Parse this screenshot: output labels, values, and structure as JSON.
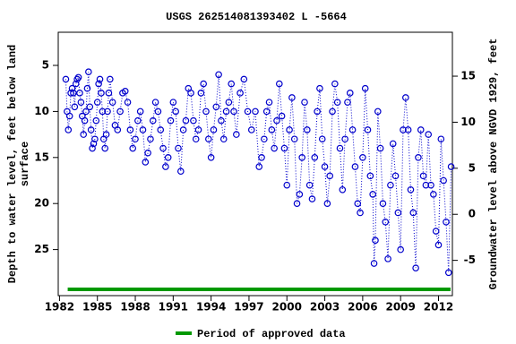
{
  "chart_data": {
    "type": "scatter",
    "title": "USGS 262514081393402 L  -5664",
    "ylabel": [
      "Depth to water level, feet below land",
      "surface"
    ],
    "y2label": "Groundwater level above NGVD 1929, feet",
    "xlim": [
      1981.9,
      2013.1
    ],
    "xticks": [
      1982,
      1985,
      1988,
      1991,
      1994,
      1997,
      2000,
      2003,
      2006,
      2009,
      2012
    ],
    "ylim": [
      30,
      1.4
    ],
    "yticks": [
      5,
      10,
      15,
      20,
      25
    ],
    "y2lim": [
      -8.83,
      19.77
    ],
    "y2ticks": [
      -5,
      0,
      5,
      10,
      15
    ],
    "series": [
      {
        "color": "#0000cc",
        "x": [
          1982.5,
          1982.6,
          1982.7,
          1982.8,
          1982.9,
          1983.0,
          1983.1,
          1983.2,
          1983.3,
          1983.4,
          1983.5,
          1983.6,
          1983.7,
          1983.8,
          1983.9,
          1984.0,
          1984.1,
          1984.2,
          1984.3,
          1984.4,
          1984.5,
          1984.6,
          1984.7,
          1984.8,
          1984.9,
          1985.0,
          1985.1,
          1985.2,
          1985.3,
          1985.4,
          1985.5,
          1985.6,
          1985.7,
          1985.8,
          1985.9,
          1986.0,
          1986.2,
          1986.4,
          1986.6,
          1986.8,
          1987.0,
          1987.2,
          1987.4,
          1987.6,
          1987.8,
          1988.0,
          1988.2,
          1988.4,
          1988.6,
          1988.8,
          1989.0,
          1989.2,
          1989.4,
          1989.6,
          1989.8,
          1990.0,
          1990.2,
          1990.4,
          1990.6,
          1990.8,
          1991.0,
          1991.2,
          1991.4,
          1991.6,
          1991.8,
          1992.0,
          1992.2,
          1992.4,
          1992.6,
          1992.8,
          1993.0,
          1993.2,
          1993.4,
          1993.6,
          1993.8,
          1994.0,
          1994.2,
          1994.4,
          1994.6,
          1994.8,
          1995.0,
          1995.2,
          1995.4,
          1995.6,
          1995.8,
          1996.0,
          1996.3,
          1996.6,
          1996.9,
          1997.2,
          1997.5,
          1997.8,
          1998.0,
          1998.2,
          1998.4,
          1998.6,
          1998.8,
          1999.0,
          1999.2,
          1999.4,
          1999.6,
          1999.8,
          2000.0,
          2000.2,
          2000.4,
          2000.6,
          2000.8,
          2001.0,
          2001.2,
          2001.4,
          2001.6,
          2001.8,
          2002.0,
          2002.2,
          2002.4,
          2002.6,
          2002.8,
          2003.0,
          2003.2,
          2003.4,
          2003.6,
          2003.8,
          2004.0,
          2004.2,
          2004.4,
          2004.6,
          2004.8,
          2005.0,
          2005.2,
          2005.4,
          2005.6,
          2005.8,
          2006.0,
          2006.2,
          2006.4,
          2006.6,
          2006.8,
          2006.9,
          2007.0,
          2007.2,
          2007.4,
          2007.6,
          2007.8,
          2008.0,
          2008.2,
          2008.4,
          2008.6,
          2008.8,
          2009.0,
          2009.2,
          2009.4,
          2009.6,
          2009.8,
          2010.0,
          2010.2,
          2010.4,
          2010.6,
          2010.8,
          2011.0,
          2011.2,
          2011.4,
          2011.6,
          2011.8,
          2012.0,
          2012.2,
          2012.4,
          2012.6,
          2012.8,
          2013.0
        ],
        "values": [
          6.5,
          10,
          12,
          10.5,
          8,
          7.5,
          8,
          9.5,
          7,
          6.5,
          6.3,
          8,
          9,
          10.5,
          12.5,
          11,
          10,
          7.5,
          5.7,
          9.5,
          12,
          14,
          13.5,
          13,
          11,
          9,
          7,
          6.5,
          8,
          10,
          13,
          14,
          12.5,
          10,
          8,
          6.5,
          9,
          11.5,
          12,
          10,
          8,
          7.8,
          9,
          12,
          14,
          13,
          11,
          10,
          12,
          15.5,
          14.5,
          13,
          11,
          9,
          10,
          12,
          14,
          16,
          15,
          11,
          9,
          10,
          14,
          16.5,
          12,
          11,
          7.5,
          8,
          11,
          13,
          12,
          8,
          7,
          10,
          13,
          15,
          12,
          9.5,
          6,
          11,
          13,
          10,
          9,
          7,
          10,
          12.5,
          8,
          6.5,
          10,
          12,
          10,
          16,
          15,
          13,
          10,
          9,
          12,
          14,
          11,
          7,
          10.5,
          14,
          18,
          12,
          8.5,
          13,
          20,
          19,
          15,
          9,
          12,
          18,
          19.5,
          15,
          10,
          7.5,
          13,
          16,
          20,
          17,
          10,
          7,
          9,
          14,
          18.5,
          13,
          9,
          8,
          12,
          16,
          20,
          21,
          15,
          7.5,
          12,
          17,
          19,
          26.5,
          24,
          10,
          14,
          20,
          22,
          26,
          18,
          13.5,
          17,
          21,
          25,
          12,
          8.5,
          12,
          18.5,
          21,
          27,
          15,
          12,
          17,
          18,
          12.5,
          18,
          19,
          23,
          24.5,
          13,
          17.5,
          22,
          27.5,
          16
        ]
      }
    ],
    "legend": {
      "label": "Period of approved data",
      "color": "#009900",
      "periods": [
        [
          1982.65,
          2012.95
        ]
      ]
    }
  }
}
